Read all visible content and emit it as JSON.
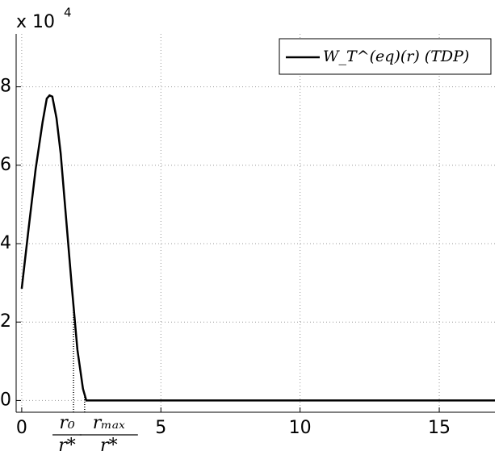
{
  "chart_data": {
    "type": "line",
    "y_multiplier_base": "x 10",
    "y_multiplier_exponent": "4",
    "x": [
      0,
      0.25,
      0.5,
      0.75,
      0.9,
      1.0,
      1.1,
      1.25,
      1.4,
      1.6,
      1.8,
      2.0,
      2.2,
      2.32,
      5,
      10,
      17
    ],
    "series": [
      {
        "name": "W_T^(eq)(r) (TDP)",
        "color": "#000000",
        "values": [
          2.85,
          4.4,
          5.9,
          7.1,
          7.7,
          7.78,
          7.75,
          7.2,
          6.3,
          4.6,
          2.9,
          1.3,
          0.3,
          0,
          0,
          0,
          0
        ]
      }
    ],
    "xlim": [
      -0.2,
      17
    ],
    "ylim": [
      -0.3,
      9.35
    ],
    "xticks": [
      0,
      5,
      10,
      15
    ],
    "yticks": [
      0,
      2,
      4,
      6,
      8
    ],
    "xtick_fractions": [
      {
        "value": 1.86,
        "numerator": "r₀",
        "denominator": "r*"
      },
      {
        "value": 2.26,
        "numerator": "rₘₐₓ",
        "denominator": "r*"
      }
    ],
    "grid": true,
    "legend": "upper right"
  }
}
